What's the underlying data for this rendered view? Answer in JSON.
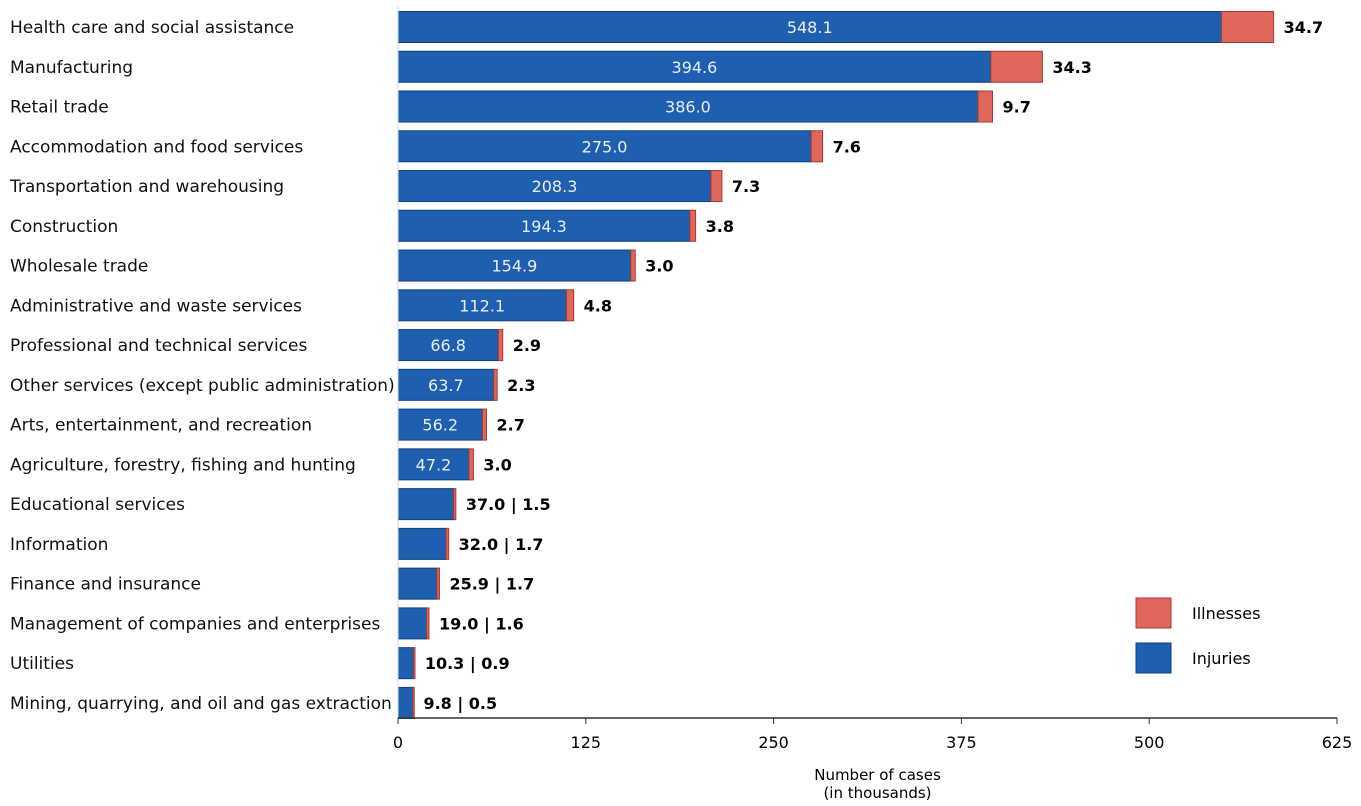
{
  "colors": {
    "injuries": "#1f5fb0",
    "injuries_edge": "#0e3f80",
    "illnesses": "#e0665c",
    "illnesses_edge": "#a33a34",
    "axis": "#333333"
  },
  "chart_data": {
    "type": "bar",
    "orientation": "horizontal",
    "stacked": true,
    "categories": [
      "Health care and social assistance",
      "Manufacturing",
      "Retail trade",
      "Accommodation and food services",
      "Transportation and warehousing",
      "Construction",
      "Wholesale trade",
      "Administrative and waste services",
      "Professional and technical services",
      "Other services (except public administration)",
      "Arts, entertainment, and recreation",
      "Agriculture, forestry, fishing and hunting",
      "Educational services",
      "Information",
      "Finance and insurance",
      "Management of companies and enterprises",
      "Utilities",
      "Mining, quarrying, and oil and gas extraction"
    ],
    "series": [
      {
        "name": "Injuries",
        "values": [
          548.1,
          394.6,
          386.0,
          275.0,
          208.3,
          194.3,
          154.9,
          112.1,
          66.8,
          63.7,
          56.2,
          47.2,
          37.0,
          32.0,
          25.9,
          19.0,
          10.3,
          9.8
        ],
        "labels": [
          "548.1",
          "394.6",
          "386.0",
          "275.0",
          "208.3",
          "194.3",
          "154.9",
          "112.1",
          "66.8",
          "63.7",
          "56.2",
          "47.2",
          "",
          "",
          "",
          "",
          "",
          ""
        ]
      },
      {
        "name": "Illnesses",
        "values": [
          34.7,
          34.3,
          9.7,
          7.6,
          7.3,
          3.8,
          3.0,
          4.8,
          2.9,
          2.3,
          2.7,
          3.0,
          1.5,
          1.7,
          1.7,
          1.6,
          0.9,
          0.5
        ]
      }
    ],
    "end_labels": [
      "34.7",
      "34.3",
      "9.7",
      "7.6",
      "7.3",
      "3.8",
      "3.0",
      "4.8",
      "2.9",
      "2.3",
      "2.7",
      "3.0",
      "37.0 | 1.5",
      "32.0 | 1.7",
      "25.9 | 1.7",
      "19.0 | 1.6",
      "10.3 | 0.9",
      "9.8 | 0.5"
    ],
    "xlim": [
      0,
      625
    ],
    "xticks": [
      0,
      125,
      250,
      375,
      500,
      625
    ],
    "xtick_labels": [
      "0",
      "125",
      "250",
      "375",
      "500",
      "625"
    ],
    "xlabel_lines": [
      "Number of cases",
      "(in thousands)"
    ],
    "ylabel": "",
    "title": "",
    "grid": false,
    "legend": {
      "position": "bottom-right",
      "entries": [
        "Illnesses",
        "Injuries"
      ]
    }
  }
}
